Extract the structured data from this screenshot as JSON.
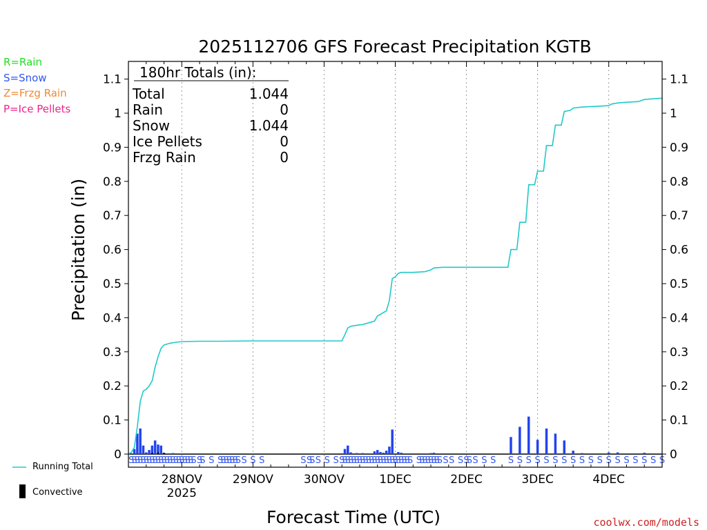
{
  "chart_data": {
    "type": "bar",
    "title": "2025112706 GFS Forecast Precipitation KGTB",
    "ylabel": "Precipitation (in)",
    "xlabel": "Forecast Time (UTC)",
    "ylim": [
      0,
      1.15
    ],
    "yticks": [
      0,
      0.1,
      0.2,
      0.3,
      0.4,
      0.5,
      0.6,
      0.7,
      0.8,
      0.9,
      1,
      1.1
    ],
    "ytick_labels": [
      "0",
      "0.1",
      "0.2",
      "0.3",
      "0.4",
      "0.5",
      "0.6",
      "0.7",
      "0.8",
      "0.9",
      "1",
      "1.1"
    ],
    "x_unit": "hours since 2025-11-27 06Z",
    "xlim": [
      0,
      180
    ],
    "x_dates": [
      {
        "label": "28NOV",
        "sublabel": "2025",
        "hour": 18
      },
      {
        "label": "29NOV",
        "sublabel": "",
        "hour": 42
      },
      {
        "label": "30NOV",
        "sublabel": "",
        "hour": 66
      },
      {
        "label": "1DEC",
        "sublabel": "",
        "hour": 90
      },
      {
        "label": "2DEC",
        "sublabel": "",
        "hour": 114
      },
      {
        "label": "3DEC",
        "sublabel": "",
        "hour": 138
      },
      {
        "label": "4DEC",
        "sublabel": "",
        "hour": 162
      }
    ],
    "bar_series": {
      "name": "Snow (hourly/3-hourly amounts)",
      "color": "#2244ee",
      "points": [
        {
          "x": 2,
          "y": 0.015
        },
        {
          "x": 3,
          "y": 0.06
        },
        {
          "x": 4,
          "y": 0.075
        },
        {
          "x": 5,
          "y": 0.025
        },
        {
          "x": 6,
          "y": 0.005
        },
        {
          "x": 7,
          "y": 0.012
        },
        {
          "x": 8,
          "y": 0.025
        },
        {
          "x": 9,
          "y": 0.04
        },
        {
          "x": 10,
          "y": 0.028
        },
        {
          "x": 11,
          "y": 0.025
        },
        {
          "x": 12,
          "y": 0.004
        },
        {
          "x": 15,
          "y": 0.003
        },
        {
          "x": 73,
          "y": 0.015
        },
        {
          "x": 74,
          "y": 0.025
        },
        {
          "x": 75,
          "y": 0.005
        },
        {
          "x": 77,
          "y": 0.003
        },
        {
          "x": 79,
          "y": 0.003
        },
        {
          "x": 83,
          "y": 0.008
        },
        {
          "x": 84,
          "y": 0.012
        },
        {
          "x": 85,
          "y": 0.006
        },
        {
          "x": 86,
          "y": 0.004
        },
        {
          "x": 87,
          "y": 0.01
        },
        {
          "x": 88,
          "y": 0.022
        },
        {
          "x": 89,
          "y": 0.072
        },
        {
          "x": 91,
          "y": 0.006
        },
        {
          "x": 92,
          "y": 0.004
        },
        {
          "x": 102,
          "y": 0.003
        },
        {
          "x": 103,
          "y": 0.004
        },
        {
          "x": 129,
          "y": 0.05
        },
        {
          "x": 132,
          "y": 0.08
        },
        {
          "x": 135,
          "y": 0.11
        },
        {
          "x": 138,
          "y": 0.042
        },
        {
          "x": 141,
          "y": 0.075
        },
        {
          "x": 144,
          "y": 0.06
        },
        {
          "x": 147,
          "y": 0.04
        },
        {
          "x": 150,
          "y": 0.01
        },
        {
          "x": 153,
          "y": 0.003
        },
        {
          "x": 162,
          "y": 0.005
        },
        {
          "x": 165,
          "y": 0.005
        },
        {
          "x": 174,
          "y": 0.004
        }
      ]
    },
    "convective_series": {
      "name": "Convective",
      "color": "#000000",
      "points": [
        {
          "x": 8,
          "y": 0.004
        },
        {
          "x": 10,
          "y": 0.005
        },
        {
          "x": 12,
          "y": 0.004
        }
      ]
    },
    "line_series": {
      "name": "Running Total",
      "color": "#20c8c8",
      "points": [
        [
          0,
          0
        ],
        [
          1,
          0.005
        ],
        [
          2,
          0.02
        ],
        [
          3,
          0.08
        ],
        [
          4,
          0.155
        ],
        [
          5,
          0.185
        ],
        [
          6,
          0.19
        ],
        [
          7,
          0.2
        ],
        [
          8,
          0.215
        ],
        [
          9,
          0.255
        ],
        [
          10,
          0.285
        ],
        [
          11,
          0.31
        ],
        [
          12,
          0.32
        ],
        [
          14,
          0.325
        ],
        [
          16,
          0.328
        ],
        [
          18,
          0.33
        ],
        [
          24,
          0.331
        ],
        [
          30,
          0.331
        ],
        [
          42,
          0.332
        ],
        [
          54,
          0.332
        ],
        [
          66,
          0.332
        ],
        [
          72,
          0.332
        ],
        [
          73,
          0.35
        ],
        [
          74,
          0.37
        ],
        [
          75,
          0.375
        ],
        [
          77,
          0.378
        ],
        [
          79,
          0.38
        ],
        [
          81,
          0.385
        ],
        [
          83,
          0.39
        ],
        [
          84,
          0.405
        ],
        [
          85,
          0.41
        ],
        [
          87,
          0.42
        ],
        [
          88,
          0.45
        ],
        [
          89,
          0.515
        ],
        [
          90,
          0.52
        ],
        [
          91,
          0.53
        ],
        [
          92,
          0.533
        ],
        [
          96,
          0.533
        ],
        [
          100,
          0.535
        ],
        [
          102,
          0.54
        ],
        [
          103,
          0.546
        ],
        [
          106,
          0.548
        ],
        [
          114,
          0.548
        ],
        [
          120,
          0.548
        ],
        [
          128,
          0.548
        ],
        [
          129,
          0.6
        ],
        [
          131,
          0.6
        ],
        [
          132,
          0.68
        ],
        [
          134,
          0.68
        ],
        [
          135,
          0.79
        ],
        [
          137,
          0.79
        ],
        [
          138,
          0.83
        ],
        [
          140,
          0.83
        ],
        [
          141,
          0.905
        ],
        [
          143,
          0.905
        ],
        [
          144,
          0.965
        ],
        [
          146,
          0.965
        ],
        [
          147,
          1.005
        ],
        [
          149,
          1.008
        ],
        [
          150,
          1.015
        ],
        [
          153,
          1.018
        ],
        [
          158,
          1.02
        ],
        [
          162,
          1.022
        ],
        [
          163,
          1.027
        ],
        [
          165,
          1.03
        ],
        [
          168,
          1.032
        ],
        [
          172,
          1.034
        ],
        [
          174,
          1.04
        ],
        [
          178,
          1.043
        ],
        [
          180,
          1.044
        ]
      ]
    },
    "ptype_markers": {
      "symbol": "S",
      "color": "#3355ee",
      "hours": [
        1,
        2,
        3,
        4,
        5,
        6,
        7,
        8,
        9,
        10,
        11,
        12,
        13,
        14,
        15,
        16,
        17,
        18,
        19,
        20,
        21,
        22,
        24,
        25,
        28,
        31,
        32,
        33,
        34,
        35,
        36,
        37,
        39,
        42,
        45,
        59,
        61,
        62,
        64,
        67,
        70,
        72,
        73,
        74,
        75,
        76,
        77,
        78,
        79,
        80,
        81,
        82,
        83,
        84,
        85,
        86,
        87,
        88,
        89,
        90,
        91,
        92,
        93,
        94,
        95,
        98,
        99,
        100,
        101,
        102,
        103,
        104,
        105,
        107,
        109,
        112,
        114,
        115,
        117,
        120,
        123,
        129,
        132,
        135,
        138,
        141,
        144,
        147,
        150,
        153,
        156,
        159,
        162,
        165,
        168,
        171,
        174,
        177,
        180
      ]
    }
  },
  "totals_box": {
    "heading": "180hr Totals (in):",
    "rows": [
      {
        "label": "Total",
        "value": "1.044"
      },
      {
        "label": "Rain",
        "value": "0"
      },
      {
        "label": "Snow",
        "value": "1.044"
      },
      {
        "label": "Ice Pellets",
        "value": "0"
      },
      {
        "label": "Frzg Rain",
        "value": "0"
      }
    ]
  },
  "legend_keys": [
    {
      "text": "R=Rain",
      "color": "#22dd22"
    },
    {
      "text": "S=Snow",
      "color": "#3355ee"
    },
    {
      "text": "Z=Frzg Rain",
      "color": "#ee8833"
    },
    {
      "text": "P=Ice Pellets",
      "color": "#ee2288"
    }
  ],
  "legend_bottom": {
    "running_total": "Running Total",
    "convective": "Convective"
  },
  "credit": {
    "text": "coolwx.com/models",
    "color": "#cc2222"
  }
}
